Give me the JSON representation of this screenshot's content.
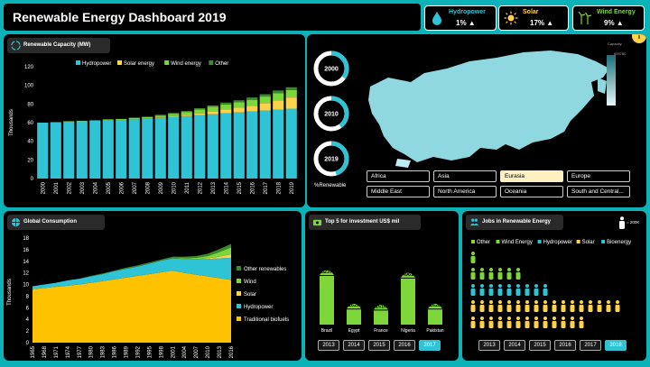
{
  "dashboard": {
    "title": "Renewable Energy Dashboard 2019"
  },
  "kpis": [
    {
      "label": "Hydropower",
      "value": "1% ▲",
      "icon": "water-drop-icon"
    },
    {
      "label": "Solar",
      "value": "17% ▲",
      "icon": "sun-icon"
    },
    {
      "label": "Wind Energy",
      "value": "9% ▲",
      "icon": "wind-turbine-icon"
    }
  ],
  "colors": {
    "hydro": "#2ec4d6",
    "solar": "#ffd24a",
    "wind": "#7dd63a",
    "other": "#3a8a2e",
    "trad": "#ffc200",
    "bg": "#0bb3b8"
  },
  "capacity": {
    "section_title": "Renewable Capacity (MW)",
    "chart_data": {
      "type": "bar",
      "stacked": true,
      "categories": [
        "2000",
        "2001",
        "2002",
        "2003",
        "2004",
        "2005",
        "2006",
        "2007",
        "2008",
        "2009",
        "2010",
        "2011",
        "2012",
        "2013",
        "2014",
        "2015",
        "2016",
        "2017",
        "2018",
        "2019"
      ],
      "series": [
        {
          "name": "Hydropower",
          "values": [
            60,
            60.5,
            61,
            61.5,
            62,
            62.5,
            63,
            63.5,
            64.5,
            65,
            66,
            67,
            68,
            69,
            70,
            71,
            72,
            73,
            74,
            75
          ]
        },
        {
          "name": "Solar energy",
          "values": [
            0,
            0,
            0,
            0,
            0,
            0,
            0,
            0,
            0,
            0.5,
            1,
            1.5,
            2,
            3,
            4,
            5,
            6,
            8,
            10,
            12
          ]
        },
        {
          "name": "Wind energy",
          "values": [
            0,
            0,
            0.5,
            0.5,
            0.5,
            1,
            1,
            1.5,
            1.5,
            2,
            2.5,
            3,
            4,
            5,
            5.5,
            6,
            6.5,
            7,
            7.5,
            8
          ]
        },
        {
          "name": "Other",
          "values": [
            0,
            0,
            0,
            0,
            0,
            0,
            0,
            0.5,
            0.5,
            1,
            1,
            1,
            1.5,
            1.5,
            2,
            2,
            2.5,
            2.5,
            3,
            3
          ]
        }
      ],
      "ylabel": "Thousands",
      "yticks": [
        "0",
        "20",
        "40",
        "60",
        "80",
        "100",
        "120"
      ],
      "ylim": [
        0,
        120
      ],
      "legend": "top"
    }
  },
  "rings": [
    {
      "year": "2000",
      "pct": 0.35
    },
    {
      "year": "2010",
      "pct": 0.4
    },
    {
      "year": "2019",
      "pct": 0.45
    }
  ],
  "renewable_label": "%Renewable",
  "map": {
    "legend_title": "Capacity",
    "legend_max": "609780",
    "info_icon": "i"
  },
  "regions": [
    "Africa",
    "Asia",
    "Eurasia",
    "Europe",
    "Middle East",
    "North America",
    "Oceania",
    "South and Central..."
  ],
  "selected_region": "Eurasia",
  "consumption": {
    "section_title": "Global Consumption",
    "chart_data": {
      "type": "area",
      "stacked": true,
      "x": [
        "1965",
        "1968",
        "1971",
        "1974",
        "1977",
        "1980",
        "1983",
        "1986",
        "1989",
        "1992",
        "1995",
        "1998",
        "2001",
        "2004",
        "2007",
        "2010",
        "2013",
        "2016"
      ],
      "series": [
        {
          "name": "Traditional biofuels",
          "values": [
            9.2,
            9.4,
            9.6,
            9.8,
            10,
            10.3,
            10.6,
            10.9,
            11.2,
            11.5,
            11.8,
            12.1,
            12.4,
            12.0,
            11.7,
            11.4,
            11.1,
            10.8
          ]
        },
        {
          "name": "Hydropower",
          "values": [
            0.5,
            0.6,
            0.7,
            0.9,
            1.0,
            1.1,
            1.2,
            1.4,
            1.5,
            1.6,
            1.8,
            2.0,
            2.1,
            2.4,
            2.7,
            3.0,
            3.4,
            3.8
          ]
        },
        {
          "name": "Solar",
          "values": [
            0,
            0,
            0,
            0,
            0,
            0,
            0,
            0,
            0,
            0,
            0,
            0,
            0,
            0,
            0,
            0.1,
            0.3,
            0.6
          ]
        },
        {
          "name": "Wind",
          "values": [
            0,
            0,
            0,
            0,
            0,
            0,
            0,
            0,
            0,
            0,
            0,
            0,
            0,
            0.1,
            0.2,
            0.4,
            0.8,
            1.2
          ]
        },
        {
          "name": "Other renewables",
          "values": [
            0,
            0,
            0,
            0,
            0,
            0.1,
            0.1,
            0.1,
            0.2,
            0.2,
            0.2,
            0.2,
            0.3,
            0.3,
            0.3,
            0.4,
            0.5,
            0.6
          ]
        }
      ],
      "ylabel": "Thousands",
      "yticks": [
        "0",
        "2",
        "4",
        "6",
        "8",
        "10",
        "12",
        "14",
        "16",
        "18"
      ],
      "ylim": [
        0,
        18
      ],
      "legend": "right"
    }
  },
  "investment": {
    "section_title": "Top 5 for investment US$ mil",
    "chart_data": {
      "type": "bar",
      "categories": [
        "Brazil",
        "Egypt",
        "France",
        "Nigeria",
        "Pakistan"
      ],
      "values": [
        5237,
        1629,
        1516,
        4961,
        1628
      ]
    },
    "years": [
      "2013",
      "2014",
      "2015",
      "2016",
      "2017"
    ],
    "selected_year": "2017"
  },
  "jobs": {
    "section_title": "Jobs in Renewable Energy",
    "scale_label": "= 200K",
    "legend": [
      "Other",
      "Wind Energy",
      "Hydropower",
      "Solar",
      "Bioenergy"
    ],
    "rows": [
      {
        "name": "Other",
        "count": 1
      },
      {
        "name": "Wind Energy",
        "count": 6
      },
      {
        "name": "Hydropower",
        "count": 9
      },
      {
        "name": "Solar",
        "count": 17
      },
      {
        "name": "Bioenergy",
        "count": 13
      }
    ],
    "years": [
      "2013",
      "2014",
      "2015",
      "2016",
      "2017",
      "2018"
    ],
    "selected_year": "2018"
  }
}
